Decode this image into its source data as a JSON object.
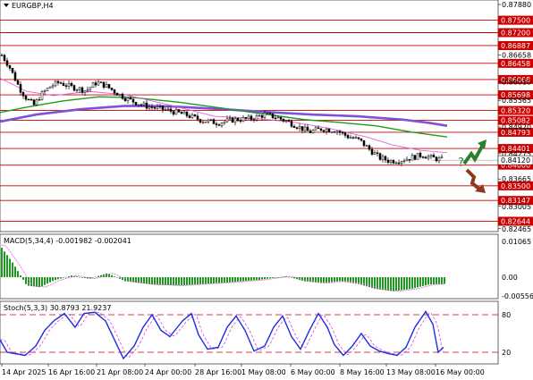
{
  "header": {
    "symbol": "EURGBP,H4"
  },
  "price_axis": {
    "ticks": [
      "0.87880",
      "0.86658",
      "0.86010",
      "0.85565",
      "0.84920",
      "0.84275",
      "0.83665",
      "0.83005",
      "0.82465"
    ],
    "red_levels": [
      "0.87500",
      "0.87200",
      "0.86887",
      "0.86458",
      "0.86068",
      "0.85698",
      "0.85320",
      "0.85082",
      "0.84793",
      "0.84401",
      "0.84000",
      "0.83500",
      "0.83147",
      "0.82644"
    ],
    "current_price": "0.84120"
  },
  "time_axis": {
    "labels": [
      "14 Apr 2025",
      "16 Apr 16:00",
      "21 Apr 08:00",
      "24 Apr 00:00",
      "28 Apr 16:00",
      "1 May 08:00",
      "6 May 00:00",
      "8 May 16:00",
      "13 May 08:00",
      "16 May 00:00"
    ]
  },
  "macd": {
    "title": "MACD(5,34,4) -0.001982 -0.002041",
    "ticks": [
      "0.01065",
      "0.00",
      "-0.005569"
    ]
  },
  "stoch": {
    "title": "Stoch(5,3,3) 30.8793 21.9237",
    "ticks": [
      "80",
      "20"
    ]
  },
  "colors": {
    "level_line": "#cc0000",
    "ma_purple": "#7b52d9",
    "ma_green": "#1e9a1e",
    "ma_pink": "#e060e0",
    "macd_bar": "#1f9a1f",
    "stoch_main": "#1a2ee0",
    "stoch_signal": "#e040e0",
    "arrow_up": "#2e7d32",
    "arrow_down": "#8b3a1a"
  },
  "icons": {
    "up_arrow": "up-scenario-arrow-icon",
    "down_arrow": "down-scenario-arrow-icon",
    "question": "question-mark-icon"
  }
}
